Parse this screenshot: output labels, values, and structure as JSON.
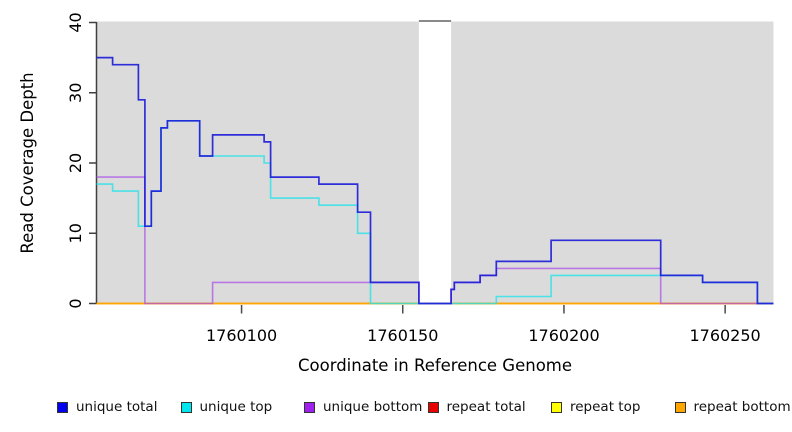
{
  "axes": {
    "xlabel": "Coordinate in Reference Genome",
    "ylabel": "Read Coverage Depth"
  },
  "colors": {
    "plot_background": "#dbdbdb",
    "gap_band": "#ffffff",
    "gap_band_top_edge": "#8a8a8a",
    "axis_line": "#3f3f3f",
    "tick_color": "#4a4a4a",
    "unique_total": "#1b1bd8",
    "unique_top": "#25e2ea",
    "unique_bottom": "#a84fe8",
    "repeat_total": "#e60000",
    "repeat_top": "#ffff00",
    "repeat_bottom": "#ffa500"
  },
  "legend": {
    "items": [
      {
        "key": "unique-total",
        "label": "unique total",
        "swatch_color": "#0000ee"
      },
      {
        "key": "unique-top",
        "label": "unique top",
        "swatch_color": "#00e5ee"
      },
      {
        "key": "unique-bottom",
        "label": "unique bottom",
        "swatch_color": "#a020f0"
      },
      {
        "key": "repeat-total",
        "label": "repeat total",
        "swatch_color": "#e60000"
      },
      {
        "key": "repeat-top",
        "label": "repeat top",
        "swatch_color": "#ffff00"
      },
      {
        "key": "repeat-bottom",
        "label": "repeat bottom",
        "swatch_color": "#ffa500"
      }
    ]
  },
  "chart_data": {
    "type": "line",
    "subtype": "step-coverage-plot",
    "title": "",
    "xlabel": "Coordinate in Reference Genome",
    "ylabel": "Read Coverage Depth",
    "xlim": [
      1760055,
      1760265
    ],
    "ylim": [
      0,
      40
    ],
    "x_ticks": [
      1760100,
      1760150,
      1760200,
      1760250
    ],
    "x_tick_labels": [
      "1760100",
      "1760150",
      "1760200",
      "1760250"
    ],
    "y_ticks": [
      0,
      10,
      20,
      30,
      40
    ],
    "y_tick_labels": [
      "0",
      "10",
      "20",
      "30",
      "40"
    ],
    "grid": false,
    "legend_position": "bottom",
    "gap_region": {
      "x_start": 1760155,
      "x_end": 1760165
    },
    "series": [
      {
        "name": "repeat total",
        "color": "#e60000",
        "opacity": 1,
        "width": 1.4,
        "points": [
          [
            1760055,
            0
          ]
        ]
      },
      {
        "name": "repeat top",
        "color": "#ffff00",
        "opacity": 1,
        "width": 1.4,
        "points": [
          [
            1760055,
            0
          ]
        ]
      },
      {
        "name": "repeat bottom",
        "color": "#ffa500",
        "opacity": 1,
        "width": 1.6,
        "points": [
          [
            1760055,
            0
          ]
        ]
      },
      {
        "name": "unique bottom",
        "color": "#a84fe8",
        "opacity": 0.7,
        "width": 1.6,
        "points": [
          [
            1760055,
            18
          ],
          [
            1760070,
            0
          ],
          [
            1760091,
            3
          ],
          [
            1760155,
            0
          ],
          [
            1760165,
            2
          ],
          [
            1760166,
            3
          ],
          [
            1760174,
            4
          ],
          [
            1760179,
            5
          ],
          [
            1760230,
            0
          ]
        ]
      },
      {
        "name": "unique top",
        "color": "#25e2ea",
        "opacity": 0.8,
        "width": 1.6,
        "points": [
          [
            1760055,
            17
          ],
          [
            1760060,
            16
          ],
          [
            1760068,
            11
          ],
          [
            1760072,
            16
          ],
          [
            1760075,
            25
          ],
          [
            1760077,
            26
          ],
          [
            1760087,
            21
          ],
          [
            1760107,
            20
          ],
          [
            1760109,
            15
          ],
          [
            1760124,
            14
          ],
          [
            1760136,
            10
          ],
          [
            1760140,
            0
          ],
          [
            1760179,
            1
          ],
          [
            1760196,
            4
          ],
          [
            1760243,
            3
          ],
          [
            1760260,
            0
          ]
        ]
      },
      {
        "name": "unique total",
        "color": "#1b1bd8",
        "opacity": 0.9,
        "width": 1.7,
        "points": [
          [
            1760055,
            35
          ],
          [
            1760060,
            34
          ],
          [
            1760068,
            29
          ],
          [
            1760070,
            11
          ],
          [
            1760072,
            16
          ],
          [
            1760075,
            25
          ],
          [
            1760077,
            26
          ],
          [
            1760087,
            21
          ],
          [
            1760091,
            24
          ],
          [
            1760107,
            23
          ],
          [
            1760109,
            18
          ],
          [
            1760124,
            17
          ],
          [
            1760136,
            13
          ],
          [
            1760140,
            3
          ],
          [
            1760155,
            0
          ],
          [
            1760165,
            2
          ],
          [
            1760166,
            3
          ],
          [
            1760174,
            4
          ],
          [
            1760179,
            6
          ],
          [
            1760196,
            9
          ],
          [
            1760230,
            4
          ],
          [
            1760243,
            3
          ],
          [
            1760260,
            0
          ]
        ]
      }
    ]
  }
}
